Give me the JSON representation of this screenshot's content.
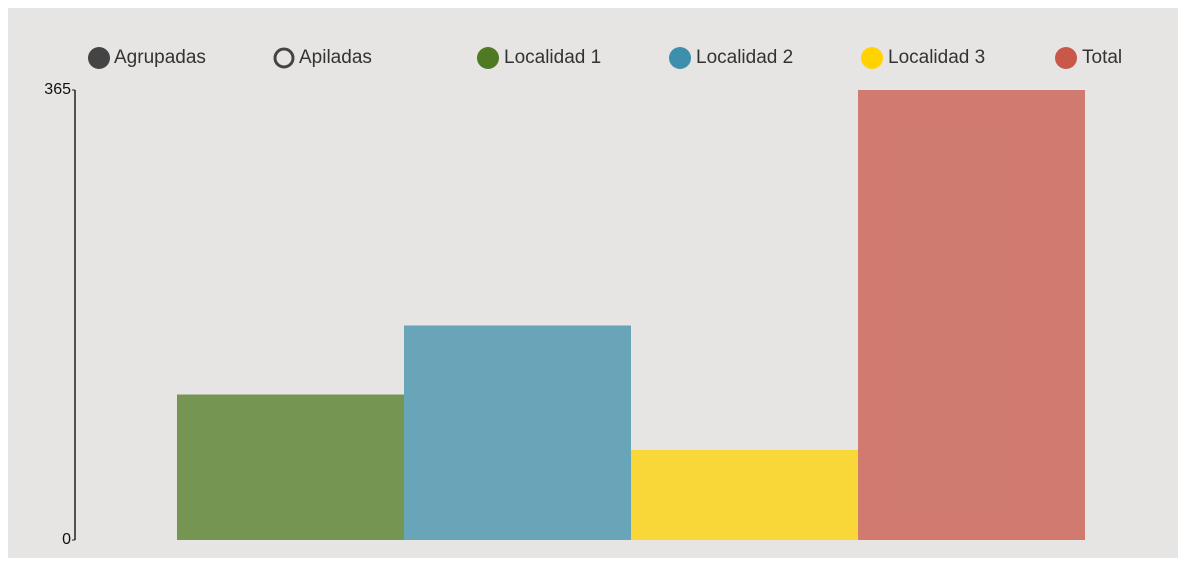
{
  "modes": [
    "Agrupadas",
    "Apiladas"
  ],
  "mode": "Agrupadas",
  "chart_data": {
    "type": "bar",
    "categories": [
      null
    ],
    "series": [
      {
        "name": "Localidad 1",
        "color": "#4f7a23",
        "values": [
          118
        ]
      },
      {
        "name": "Localidad 2",
        "color": "#3e8fab",
        "values": [
          174
        ]
      },
      {
        "name": "Localidad 3",
        "color": "#ffd200",
        "values": [
          73
        ]
      },
      {
        "name": "Total",
        "color": "#c9574a",
        "values": [
          365
        ]
      }
    ],
    "ylim": [
      0,
      365
    ],
    "yticks": [
      0,
      365
    ]
  }
}
